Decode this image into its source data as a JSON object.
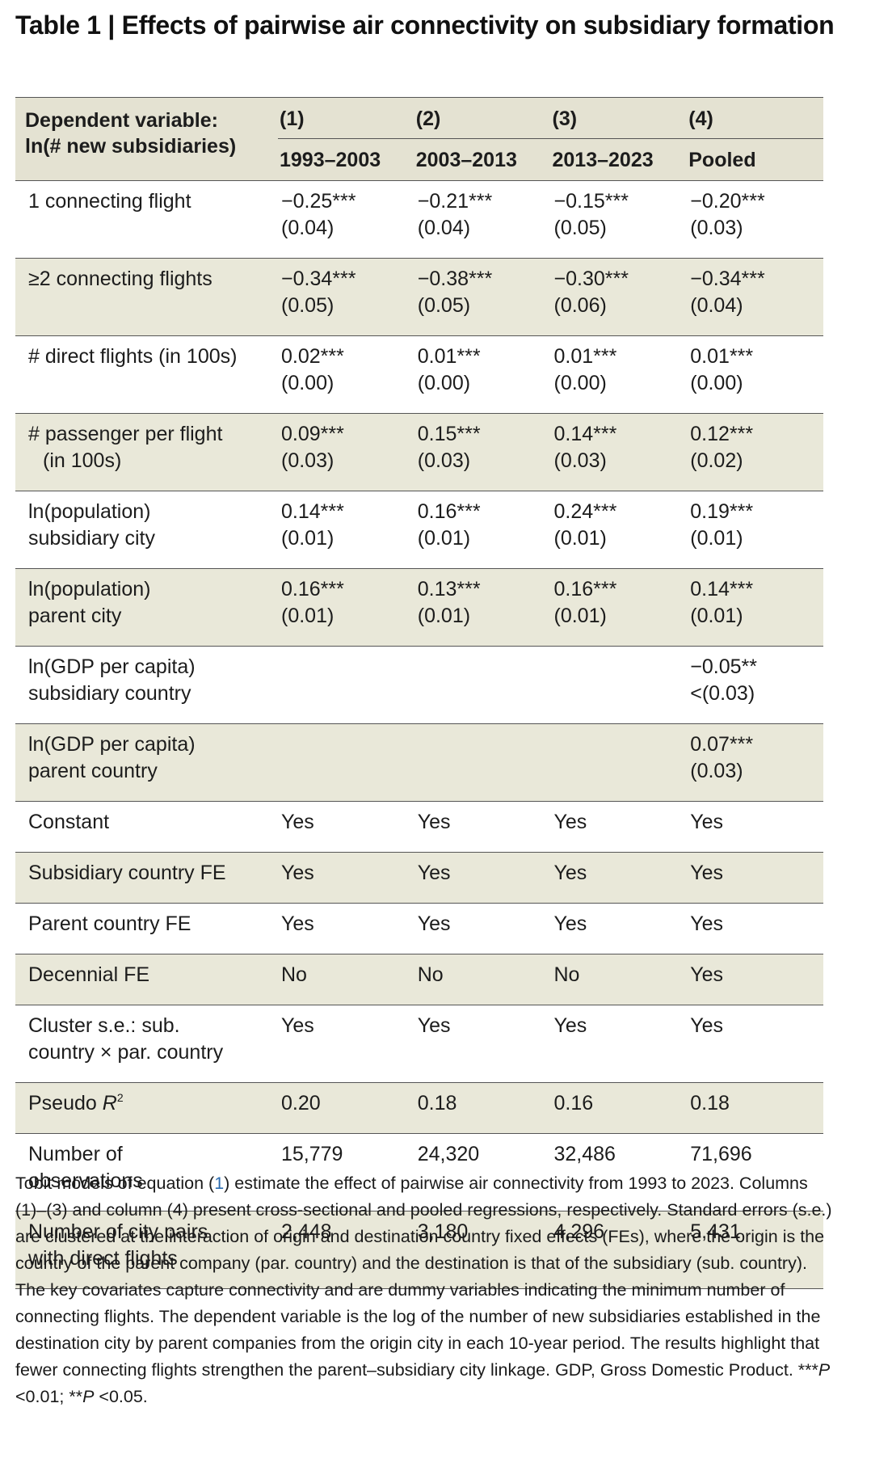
{
  "title": "Table 1 | Effects of pairwise air connectivity on subsidiary formation",
  "header": {
    "dv_line1": "Dependent variable:",
    "dv_line2": "ln(# new subsidiaries)",
    "columns": [
      {
        "num": "(1)",
        "period": "1993–2003"
      },
      {
        "num": "(2)",
        "period": "2003–2013"
      },
      {
        "num": "(3)",
        "period": "2013–2023"
      },
      {
        "num": "(4)",
        "period": "Pooled"
      }
    ]
  },
  "rows": [
    {
      "label1": "1 connecting flight",
      "label2": "",
      "cells": [
        [
          "−0.25***",
          "(0.04)"
        ],
        [
          "−0.21***",
          "(0.04)"
        ],
        [
          "−0.15***",
          "(0.05)"
        ],
        [
          "−0.20***",
          "(0.03)"
        ]
      ]
    },
    {
      "label1": "≥2 connecting flights",
      "label2": "",
      "cells": [
        [
          "−0.34***",
          "(0.05)"
        ],
        [
          "−0.38***",
          "(0.05)"
        ],
        [
          "−0.30***",
          "(0.06)"
        ],
        [
          "−0.34***",
          "(0.04)"
        ]
      ]
    },
    {
      "label1": "# direct flights (in 100s)",
      "label2": "",
      "cells": [
        [
          "0.02***",
          "(0.00)"
        ],
        [
          "0.01***",
          "(0.00)"
        ],
        [
          "0.01***",
          "(0.00)"
        ],
        [
          "0.01***",
          "(0.00)"
        ]
      ]
    },
    {
      "label1": "# passenger per flight",
      "label2": "(in 100s)",
      "cells": [
        [
          "0.09***",
          "(0.03)"
        ],
        [
          "0.15***",
          "(0.03)"
        ],
        [
          "0.14***",
          "(0.03)"
        ],
        [
          "0.12***",
          "(0.02)"
        ]
      ]
    },
    {
      "label1": "ln(population)",
      "label2": "subsidiary city",
      "cells": [
        [
          "0.14***",
          "(0.01)"
        ],
        [
          "0.16***",
          "(0.01)"
        ],
        [
          "0.24***",
          "(0.01)"
        ],
        [
          "0.19***",
          "(0.01)"
        ]
      ]
    },
    {
      "label1": "ln(population)",
      "label2": "parent city",
      "cells": [
        [
          "0.16***",
          "(0.01)"
        ],
        [
          "0.13***",
          "(0.01)"
        ],
        [
          "0.16***",
          "(0.01)"
        ],
        [
          "0.14***",
          "(0.01)"
        ]
      ]
    },
    {
      "label1": "ln(GDP per capita)",
      "label2": "subsidiary country",
      "cells": [
        [
          "",
          ""
        ],
        [
          "",
          ""
        ],
        [
          "",
          ""
        ],
        [
          "−0.05**",
          "<(0.03)"
        ]
      ]
    },
    {
      "label1": "ln(GDP per capita)",
      "label2": "parent country",
      "cells": [
        [
          "",
          ""
        ],
        [
          "",
          ""
        ],
        [
          "",
          ""
        ],
        [
          "0.07***",
          "(0.03)"
        ]
      ]
    },
    {
      "label1": "Constant",
      "label2": "",
      "cells": [
        [
          "Yes",
          ""
        ],
        [
          "Yes",
          ""
        ],
        [
          "Yes",
          ""
        ],
        [
          "Yes",
          ""
        ]
      ]
    },
    {
      "label1": "Subsidiary country FE",
      "label2": "",
      "cells": [
        [
          "Yes",
          ""
        ],
        [
          "Yes",
          ""
        ],
        [
          "Yes",
          ""
        ],
        [
          "Yes",
          ""
        ]
      ]
    },
    {
      "label1": "Parent country FE",
      "label2": "",
      "cells": [
        [
          "Yes",
          ""
        ],
        [
          "Yes",
          ""
        ],
        [
          "Yes",
          ""
        ],
        [
          "Yes",
          ""
        ]
      ]
    },
    {
      "label1": "Decennial FE",
      "label2": "",
      "cells": [
        [
          "No",
          ""
        ],
        [
          "No",
          ""
        ],
        [
          "No",
          ""
        ],
        [
          "Yes",
          ""
        ]
      ]
    },
    {
      "label1": "Cluster s.e.: sub.",
      "label2": "country × par. country",
      "cells": [
        [
          "Yes",
          ""
        ],
        [
          "Yes",
          ""
        ],
        [
          "Yes",
          ""
        ],
        [
          "Yes",
          ""
        ]
      ]
    },
    {
      "label1": "Pseudo ",
      "label_italic": "R",
      "label_sup": "2",
      "label2": "",
      "cells": [
        [
          "0.20",
          ""
        ],
        [
          "0.18",
          ""
        ],
        [
          "0.16",
          ""
        ],
        [
          "0.18",
          ""
        ]
      ]
    },
    {
      "label1": "Number of",
      "label2": "observations",
      "cells": [
        [
          "15,779",
          ""
        ],
        [
          "24,320",
          ""
        ],
        [
          "32,486",
          ""
        ],
        [
          "71,696",
          ""
        ]
      ]
    },
    {
      "label1": "Number of city pairs",
      "label2": "with direct flights",
      "cells": [
        [
          "2,448",
          ""
        ],
        [
          "3,180",
          ""
        ],
        [
          "4,296",
          ""
        ],
        [
          "5,431",
          ""
        ]
      ]
    }
  ],
  "caption": {
    "part1": "Tobit models of equation (",
    "ref": "1",
    "part2": ") estimate the effect of pairwise air connectivity from 1993 to 2023. Columns (1)–(3) and column (4) present cross-sectional and pooled regressions, respectively. Standard errors (s.e.) are clustered at the interaction of origin and destination country fixed effects (FEs), where the origin is the country of the parent company (par. country) and the destination is that of the subsidiary (sub. country). The key covariates capture connectivity and are dummy variables indicating the minimum number of connecting flights. The dependent variable is the log of the number of new subsidiaries established in the destination city by parent companies from the origin city in each 10-year period. The results highlight that fewer connecting flights strengthen the parent–subsidiary city linkage. GDP, Gross Domestic Product. ",
    "p1_stars": "***",
    "p1_P": "P",
    "p1_rest": " <0.01; ",
    "p2_stars": "**",
    "p2_P": "P",
    "p2_rest": " <0.05."
  }
}
